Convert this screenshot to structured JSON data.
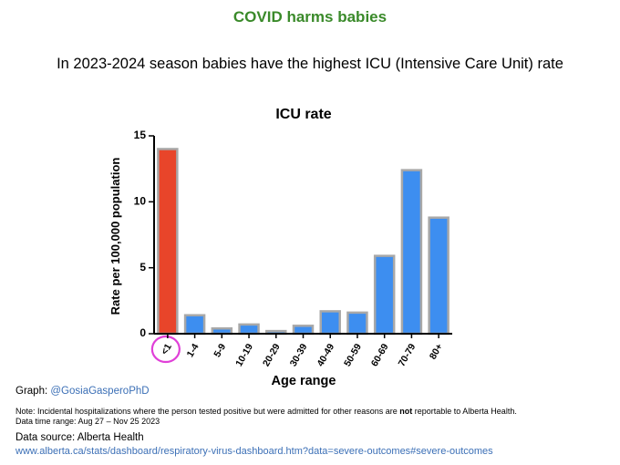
{
  "header": {
    "headline": "COVID harms babies",
    "subtitle": "In 2023-2024 season babies have the highest ICU (Intensive Care Unit) rate"
  },
  "chart_data": {
    "type": "bar",
    "title": "ICU rate",
    "xlabel": "Age range",
    "ylabel": "Rate per 100,000 population",
    "ylim": [
      0,
      15
    ],
    "yticks": [
      0,
      5,
      10,
      15
    ],
    "grid": false,
    "categories": [
      "<1",
      "1-4",
      "5-9",
      "10-19",
      "20-29",
      "30-39",
      "40-49",
      "50-59",
      "60-69",
      "70-79",
      "80+"
    ],
    "values": [
      14.0,
      1.4,
      0.4,
      0.7,
      0.2,
      0.6,
      1.7,
      1.6,
      5.9,
      12.4,
      8.8
    ],
    "colors": [
      "#e8452a",
      "#3d8ef0",
      "#3d8ef0",
      "#3d8ef0",
      "#3d8ef0",
      "#3d8ef0",
      "#3d8ef0",
      "#3d8ef0",
      "#3d8ef0",
      "#3d8ef0",
      "#3d8ef0"
    ],
    "bar_outline": "#a8a8a8",
    "highlight_category": "<1",
    "highlight_color": "#e040d8"
  },
  "footer": {
    "graph_label": "Graph:",
    "graph_handle": "@GosiaGasperoPhD",
    "note_prefix": "Note: Incidental hospitalizations where the person tested positive but were admitted for other reasons are ",
    "note_emphasis": "not",
    "note_suffix": " reportable to Alberta Health.",
    "date_range": "Data time range: Aug 27 – Nov 25 2023",
    "source_label": "Data source: Alberta Health",
    "source_url": "www.alberta.ca/stats/dashboard/respiratory-virus-dashboard.htm?data=severe-outcomes#severe-outcomes"
  }
}
